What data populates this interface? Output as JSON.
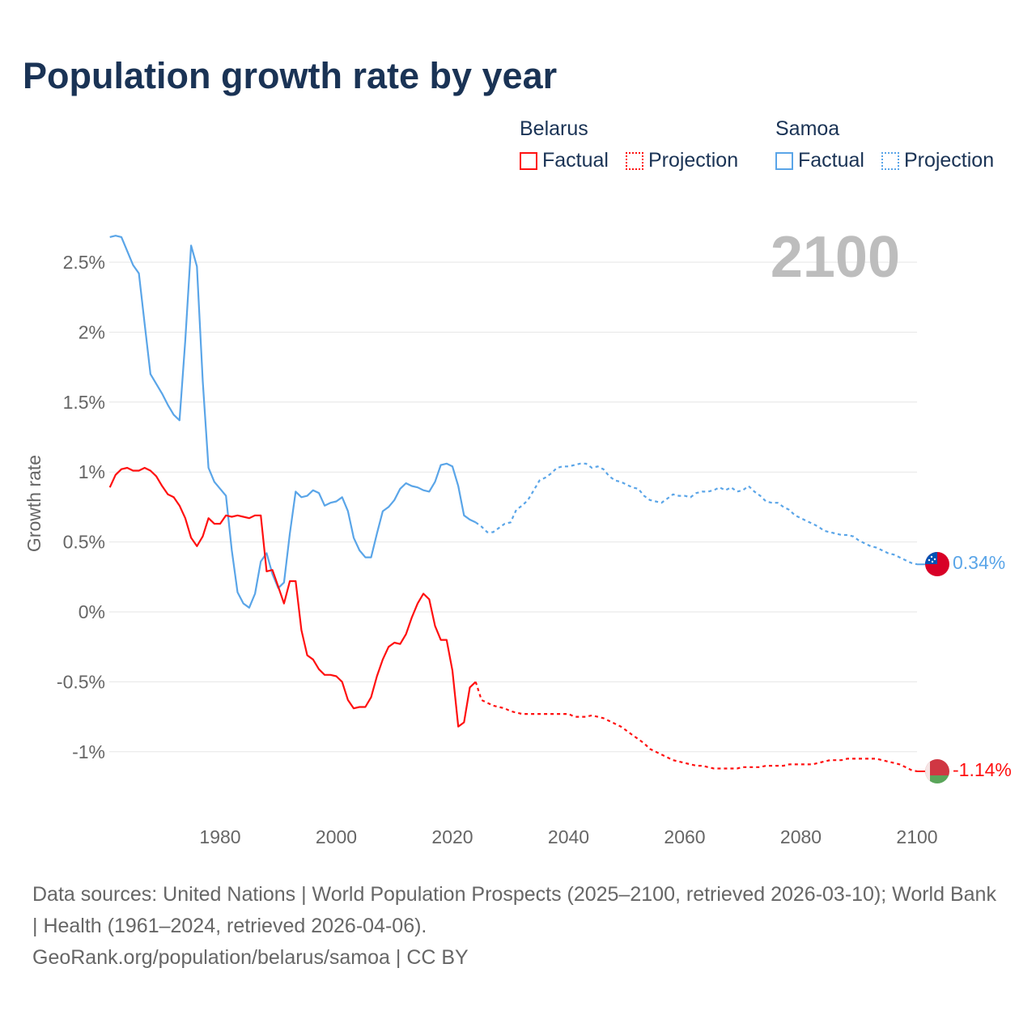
{
  "title": "Population growth rate by year",
  "legend": {
    "belarus": {
      "name": "Belarus",
      "factual": "Factual",
      "projection": "Projection"
    },
    "samoa": {
      "name": "Samoa",
      "factual": "Factual",
      "projection": "Projection"
    }
  },
  "year_watermark": "2100",
  "end_labels": {
    "samoa": "0.34%",
    "belarus": "-1.14%"
  },
  "footer": {
    "sources": "Data sources: United Nations | World Population Prospects (2025–2100, retrieved 2026-03-10); World Bank | Health (1961–2024, retrieved 2026-04-06).",
    "link": "GeoRank.org/population/belarus/samoa | CC BY"
  },
  "colors": {
    "belarus": "#ff1010",
    "samoa": "#5aa5e8",
    "title": "#1a3355",
    "grid": "#e6e6e6"
  },
  "chart_data": {
    "type": "line",
    "title": "Population growth rate by year",
    "xlabel": "",
    "ylabel": "Growth rate",
    "xlim": [
      1961,
      2100
    ],
    "ylim": [
      -1.45,
      2.75
    ],
    "x_ticks": [
      "1980",
      "2000",
      "2020",
      "2040",
      "2060",
      "2080",
      "2100"
    ],
    "y_ticks": [
      {
        "v": 2.5,
        "label": "2.5%"
      },
      {
        "v": 2,
        "label": "2%"
      },
      {
        "v": 1.5,
        "label": "1.5%"
      },
      {
        "v": 1,
        "label": "1%"
      },
      {
        "v": 0.5,
        "label": "0.5%"
      },
      {
        "v": 0,
        "label": "0%"
      },
      {
        "v": -0.5,
        "label": "-0.5%"
      },
      {
        "v": -1,
        "label": "-1%"
      }
    ],
    "grid": true,
    "legend_position": "top-right",
    "series": [
      {
        "name": "Samoa",
        "factual_start": 1961,
        "factual": [
          2.68,
          2.69,
          2.68,
          2.58,
          2.48,
          2.42,
          2.06,
          1.7,
          1.63,
          1.56,
          1.48,
          1.41,
          1.37,
          1.94,
          2.62,
          2.47,
          1.65,
          1.03,
          0.93,
          0.88,
          0.83,
          0.44,
          0.14,
          0.06,
          0.03,
          0.13,
          0.36,
          0.42,
          0.27,
          0.17,
          0.21,
          0.56,
          0.86,
          0.82,
          0.83,
          0.87,
          0.85,
          0.76,
          0.78,
          0.79,
          0.82,
          0.72,
          0.53,
          0.44,
          0.39,
          0.39,
          0.56,
          0.72,
          0.75,
          0.8,
          0.88,
          0.92,
          0.9,
          0.89,
          0.87,
          0.86,
          0.93,
          1.05,
          1.06,
          1.04,
          0.9,
          0.69,
          0.66,
          0.64
        ],
        "projection_start": 2025,
        "projection": [
          0.61,
          0.57,
          0.57,
          0.6,
          0.63,
          0.64,
          0.73,
          0.76,
          0.8,
          0.87,
          0.94,
          0.96,
          0.99,
          1.03,
          1.04,
          1.04,
          1.05,
          1.06,
          1.06,
          1.03,
          1.04,
          1.02,
          0.97,
          0.94,
          0.93,
          0.91,
          0.89,
          0.88,
          0.83,
          0.8,
          0.79,
          0.78,
          0.81,
          0.84,
          0.83,
          0.83,
          0.82,
          0.85,
          0.86,
          0.86,
          0.87,
          0.89,
          0.87,
          0.89,
          0.86,
          0.87,
          0.9,
          0.86,
          0.83,
          0.79,
          0.78,
          0.78,
          0.75,
          0.73,
          0.69,
          0.67,
          0.65,
          0.63,
          0.61,
          0.58,
          0.57,
          0.56,
          0.55,
          0.55,
          0.54,
          0.51,
          0.49,
          0.47,
          0.46,
          0.44,
          0.42,
          0.41,
          0.39,
          0.37,
          0.35,
          0.34
        ]
      },
      {
        "name": "Belarus",
        "factual_start": 1961,
        "factual": [
          0.89,
          0.98,
          1.02,
          1.03,
          1.01,
          1.01,
          1.03,
          1.01,
          0.97,
          0.9,
          0.84,
          0.82,
          0.76,
          0.67,
          0.53,
          0.47,
          0.54,
          0.67,
          0.63,
          0.63,
          0.69,
          0.68,
          0.69,
          0.68,
          0.67,
          0.69,
          0.69,
          0.29,
          0.3,
          0.18,
          0.06,
          0.22,
          0.22,
          -0.13,
          -0.31,
          -0.34,
          -0.41,
          -0.45,
          -0.45,
          -0.46,
          -0.5,
          -0.63,
          -0.69,
          -0.68,
          -0.68,
          -0.61,
          -0.46,
          -0.34,
          -0.25,
          -0.22,
          -0.23,
          -0.16,
          -0.04,
          0.06,
          0.13,
          0.09,
          -0.1,
          -0.2,
          -0.2,
          -0.42,
          -0.82,
          -0.79,
          -0.54,
          -0.5
        ],
        "projection_start": 2025,
        "projection": [
          -0.63,
          -0.65,
          -0.67,
          -0.68,
          -0.69,
          -0.71,
          -0.72,
          -0.73,
          -0.73,
          -0.73,
          -0.73,
          -0.73,
          -0.73,
          -0.73,
          -0.73,
          -0.73,
          -0.75,
          -0.75,
          -0.75,
          -0.74,
          -0.75,
          -0.76,
          -0.78,
          -0.8,
          -0.82,
          -0.85,
          -0.88,
          -0.91,
          -0.94,
          -0.98,
          -1.0,
          -1.02,
          -1.04,
          -1.06,
          -1.07,
          -1.08,
          -1.09,
          -1.1,
          -1.1,
          -1.11,
          -1.12,
          -1.12,
          -1.12,
          -1.12,
          -1.12,
          -1.11,
          -1.11,
          -1.11,
          -1.11,
          -1.1,
          -1.1,
          -1.1,
          -1.1,
          -1.09,
          -1.09,
          -1.09,
          -1.09,
          -1.09,
          -1.08,
          -1.07,
          -1.06,
          -1.06,
          -1.06,
          -1.05,
          -1.05,
          -1.05,
          -1.05,
          -1.05,
          -1.05,
          -1.06,
          -1.07,
          -1.08,
          -1.09,
          -1.11,
          -1.13,
          -1.14
        ]
      }
    ]
  }
}
